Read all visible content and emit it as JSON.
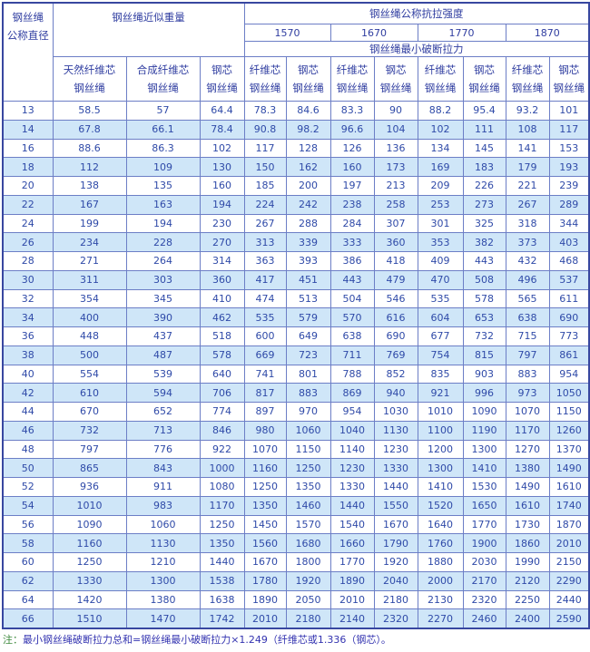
{
  "colors": {
    "border_outer": "#3847a0",
    "border_inner": "#6c7ec6",
    "header_text": "#2f3da0",
    "data_text": "#2f4aa8",
    "row_alt_bg": "#cfe6f8",
    "note_label": "#3e8a3e",
    "note_text": "#3333b0"
  },
  "table": {
    "header": {
      "diameter_lines": [
        "钢丝绳",
        "公称直径"
      ],
      "approx_weight": "钢丝绳近似重量",
      "tensile_strength": "钢丝绳公称抗拉强度",
      "strengths": [
        "1570",
        "1670",
        "1770",
        "1870"
      ],
      "min_breaking_force": "钢丝绳最小破断拉力",
      "weight_cols": [
        [
          "天然纤维芯",
          "钢丝绳"
        ],
        [
          "合成纤维芯",
          "钢丝绳"
        ],
        [
          "钢芯",
          "钢丝绳"
        ]
      ],
      "force_cols": [
        [
          "纤维芯",
          "钢丝绳"
        ],
        [
          "钢芯",
          "钢丝绳"
        ],
        [
          "纤维芯",
          "钢丝绳"
        ],
        [
          "钢芯",
          "钢丝绳"
        ],
        [
          "纤维芯",
          "钢丝绳"
        ],
        [
          "钢芯",
          "钢丝绳"
        ],
        [
          "纤维芯",
          "钢丝绳"
        ],
        [
          "钢芯",
          "钢丝绳"
        ]
      ]
    },
    "rows": [
      [
        "13",
        "58.5",
        "57",
        "64.4",
        "78.3",
        "84.6",
        "83.3",
        "90",
        "88.2",
        "95.4",
        "93.2",
        "101"
      ],
      [
        "14",
        "67.8",
        "66.1",
        "78.4",
        "90.8",
        "98.2",
        "96.6",
        "104",
        "102",
        "111",
        "108",
        "117"
      ],
      [
        "16",
        "88.6",
        "86.3",
        "102",
        "117",
        "128",
        "126",
        "136",
        "134",
        "145",
        "141",
        "153"
      ],
      [
        "18",
        "112",
        "109",
        "130",
        "150",
        "162",
        "160",
        "173",
        "169",
        "183",
        "179",
        "193"
      ],
      [
        "20",
        "138",
        "135",
        "160",
        "185",
        "200",
        "197",
        "213",
        "209",
        "226",
        "221",
        "239"
      ],
      [
        "22",
        "167",
        "163",
        "194",
        "224",
        "242",
        "238",
        "258",
        "253",
        "273",
        "267",
        "289"
      ],
      [
        "24",
        "199",
        "194",
        "230",
        "267",
        "288",
        "284",
        "307",
        "301",
        "325",
        "318",
        "344"
      ],
      [
        "26",
        "234",
        "228",
        "270",
        "313",
        "339",
        "333",
        "360",
        "353",
        "382",
        "373",
        "403"
      ],
      [
        "28",
        "271",
        "264",
        "314",
        "363",
        "393",
        "386",
        "418",
        "409",
        "443",
        "432",
        "468"
      ],
      [
        "30",
        "311",
        "303",
        "360",
        "417",
        "451",
        "443",
        "479",
        "470",
        "508",
        "496",
        "537"
      ],
      [
        "32",
        "354",
        "345",
        "410",
        "474",
        "513",
        "504",
        "546",
        "535",
        "578",
        "565",
        "611"
      ],
      [
        "34",
        "400",
        "390",
        "462",
        "535",
        "579",
        "570",
        "616",
        "604",
        "653",
        "638",
        "690"
      ],
      [
        "36",
        "448",
        "437",
        "518",
        "600",
        "649",
        "638",
        "690",
        "677",
        "732",
        "715",
        "773"
      ],
      [
        "38",
        "500",
        "487",
        "578",
        "669",
        "723",
        "711",
        "769",
        "754",
        "815",
        "797",
        "861"
      ],
      [
        "40",
        "554",
        "539",
        "640",
        "741",
        "801",
        "788",
        "852",
        "835",
        "903",
        "883",
        "954"
      ],
      [
        "42",
        "610",
        "594",
        "706",
        "817",
        "883",
        "869",
        "940",
        "921",
        "996",
        "973",
        "1050"
      ],
      [
        "44",
        "670",
        "652",
        "774",
        "897",
        "970",
        "954",
        "1030",
        "1010",
        "1090",
        "1070",
        "1150"
      ],
      [
        "46",
        "732",
        "713",
        "846",
        "980",
        "1060",
        "1040",
        "1130",
        "1100",
        "1190",
        "1170",
        "1260"
      ],
      [
        "48",
        "797",
        "776",
        "922",
        "1070",
        "1150",
        "1140",
        "1230",
        "1200",
        "1300",
        "1270",
        "1370"
      ],
      [
        "50",
        "865",
        "843",
        "1000",
        "1160",
        "1250",
        "1230",
        "1330",
        "1300",
        "1410",
        "1380",
        "1490"
      ],
      [
        "52",
        "936",
        "911",
        "1080",
        "1250",
        "1350",
        "1330",
        "1440",
        "1410",
        "1530",
        "1490",
        "1610"
      ],
      [
        "54",
        "1010",
        "983",
        "1170",
        "1350",
        "1460",
        "1440",
        "1550",
        "1520",
        "1650",
        "1610",
        "1740"
      ],
      [
        "56",
        "1090",
        "1060",
        "1250",
        "1450",
        "1570",
        "1540",
        "1670",
        "1640",
        "1770",
        "1730",
        "1870"
      ],
      [
        "58",
        "1160",
        "1130",
        "1350",
        "1560",
        "1680",
        "1660",
        "1790",
        "1760",
        "1900",
        "1860",
        "2010"
      ],
      [
        "60",
        "1250",
        "1210",
        "1440",
        "1670",
        "1800",
        "1770",
        "1920",
        "1880",
        "2030",
        "1990",
        "2150"
      ],
      [
        "62",
        "1330",
        "1300",
        "1538",
        "1780",
        "1920",
        "1890",
        "2040",
        "2000",
        "2170",
        "2120",
        "2290"
      ],
      [
        "64",
        "1420",
        "1380",
        "1638",
        "1890",
        "2050",
        "2010",
        "2180",
        "2130",
        "2320",
        "2250",
        "2440"
      ],
      [
        "66",
        "1510",
        "1470",
        "1742",
        "2010",
        "2180",
        "2140",
        "2320",
        "2270",
        "2460",
        "2400",
        "2590"
      ]
    ]
  },
  "note": {
    "label": "注：",
    "text": "最小钢丝绳破断拉力总和=钢丝绳最小破断拉力×1.249（纤维芯或1.336（钢芯）。"
  }
}
